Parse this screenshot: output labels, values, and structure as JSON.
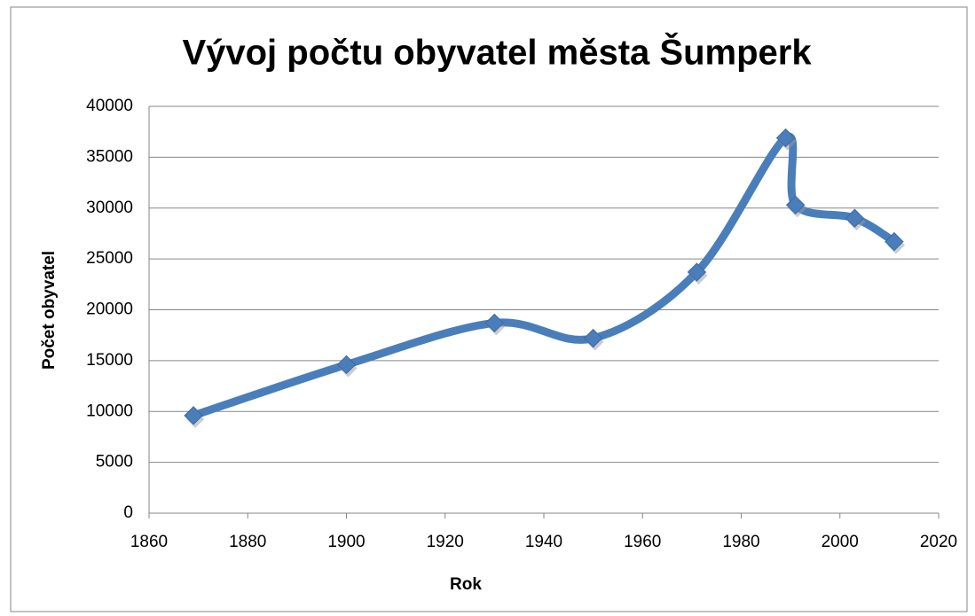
{
  "chart_data": {
    "type": "line",
    "title": "Vývoj počtu obyvatel města Šumperk",
    "x_label": "Rok",
    "y_label": "Počet obyvatel",
    "x": [
      1869,
      1900,
      1930,
      1950,
      1971,
      1989,
      1991,
      2003,
      2011
    ],
    "series": [
      {
        "name": "Počet obyvatel",
        "color": "#4a7ebb",
        "values": [
          9600,
          14600,
          18700,
          17200,
          23700,
          36900,
          30300,
          29000,
          26700
        ]
      }
    ],
    "xlim": [
      1860,
      2020
    ],
    "xticks": [
      1860,
      1880,
      1900,
      1920,
      1940,
      1960,
      1980,
      2000,
      2020
    ],
    "ylim": [
      0,
      40000
    ],
    "yticks": [
      0,
      5000,
      10000,
      15000,
      20000,
      25000,
      30000,
      35000,
      40000
    ],
    "grid": true,
    "smooth": true
  }
}
